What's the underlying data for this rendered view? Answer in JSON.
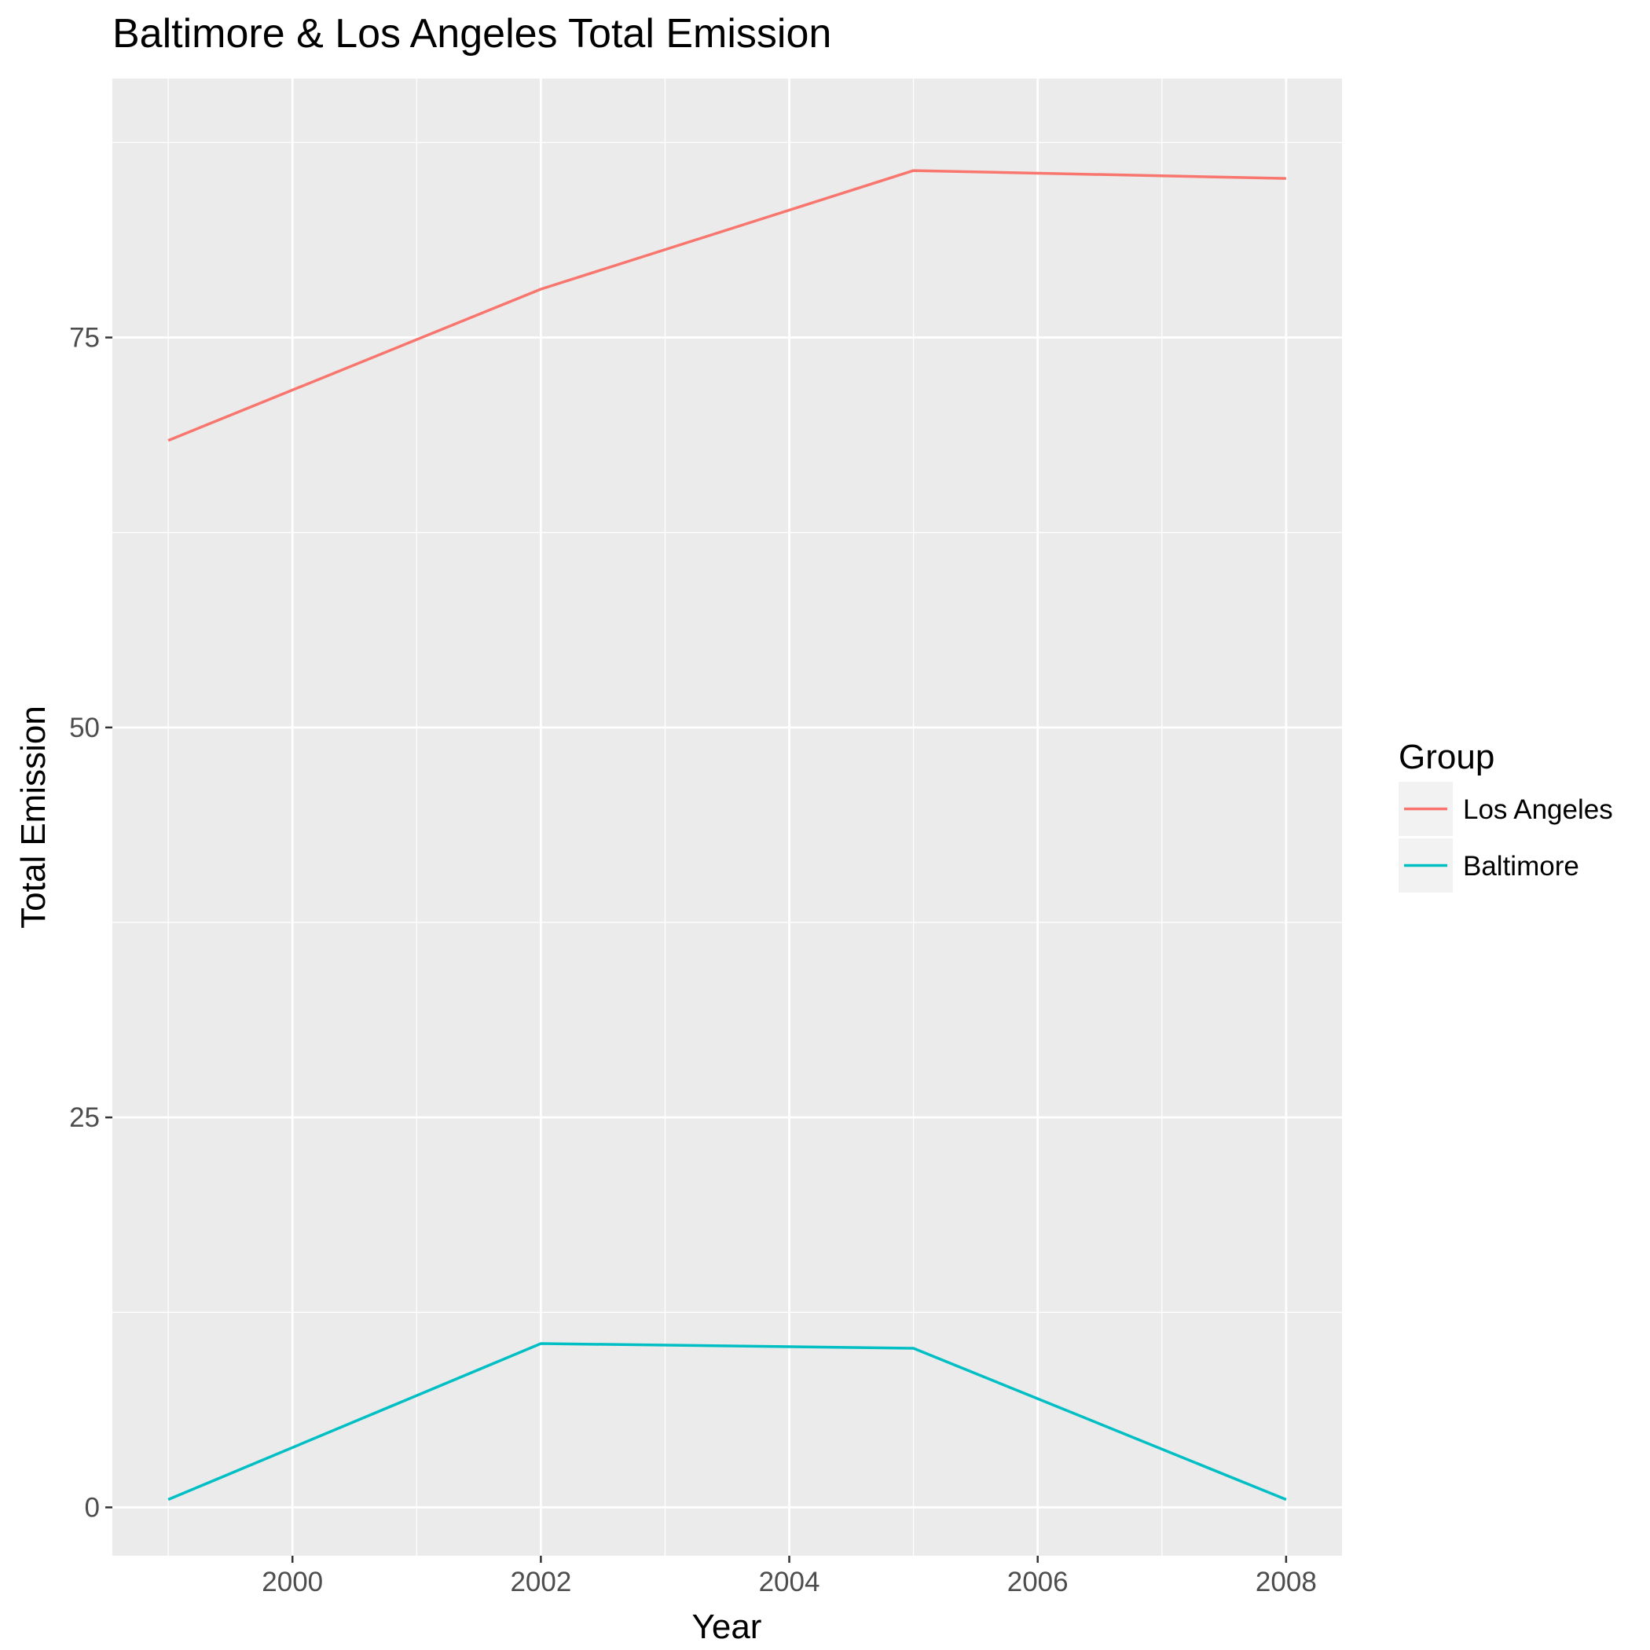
{
  "chart_data": {
    "type": "line",
    "title": "Baltimore & Los Angeles Total Emission",
    "xlabel": "Year",
    "ylabel": "Total Emission",
    "x": [
      1999,
      2002,
      2005,
      2008
    ],
    "xlim": [
      1998.55,
      2008.45
    ],
    "ylim": [
      -3.1,
      91.6
    ],
    "x_ticks": [
      2000,
      2002,
      2004,
      2006,
      2008
    ],
    "y_ticks": [
      0,
      25,
      50,
      75
    ],
    "grid": true,
    "legend": {
      "title": "Group",
      "position": "right"
    },
    "series": [
      {
        "name": "Los Angeles",
        "color": "#F8766D",
        "values": [
          68.4,
          78.1,
          85.7,
          85.2
        ]
      },
      {
        "name": "Baltimore",
        "color": "#00BFC4",
        "values": [
          0.5,
          10.5,
          10.2,
          0.5
        ]
      }
    ]
  }
}
